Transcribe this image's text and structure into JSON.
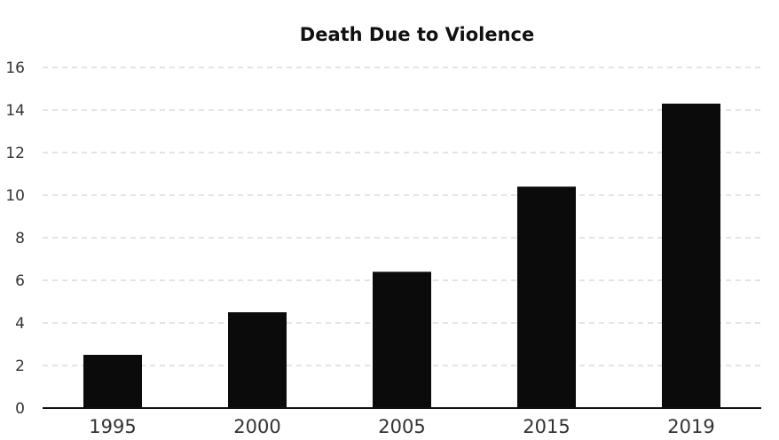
{
  "chart_data": {
    "type": "bar",
    "title": "Death Due to Violence",
    "xlabel": "",
    "ylabel": "",
    "categories": [
      "1995",
      "2000",
      "2005",
      "2015",
      "2019"
    ],
    "values": [
      2.5,
      4.5,
      6.4,
      10.4,
      14.3
    ],
    "ylim": [
      0,
      16
    ],
    "yticks": [
      "0",
      "2",
      "4",
      "6",
      "8",
      "10",
      "12",
      "14",
      "16"
    ],
    "grid": true,
    "legend": "none",
    "colors": {
      "bar": "#0b0b0b",
      "grid": "#c8c8c8",
      "axis": "#111111",
      "text": "#333333"
    }
  }
}
